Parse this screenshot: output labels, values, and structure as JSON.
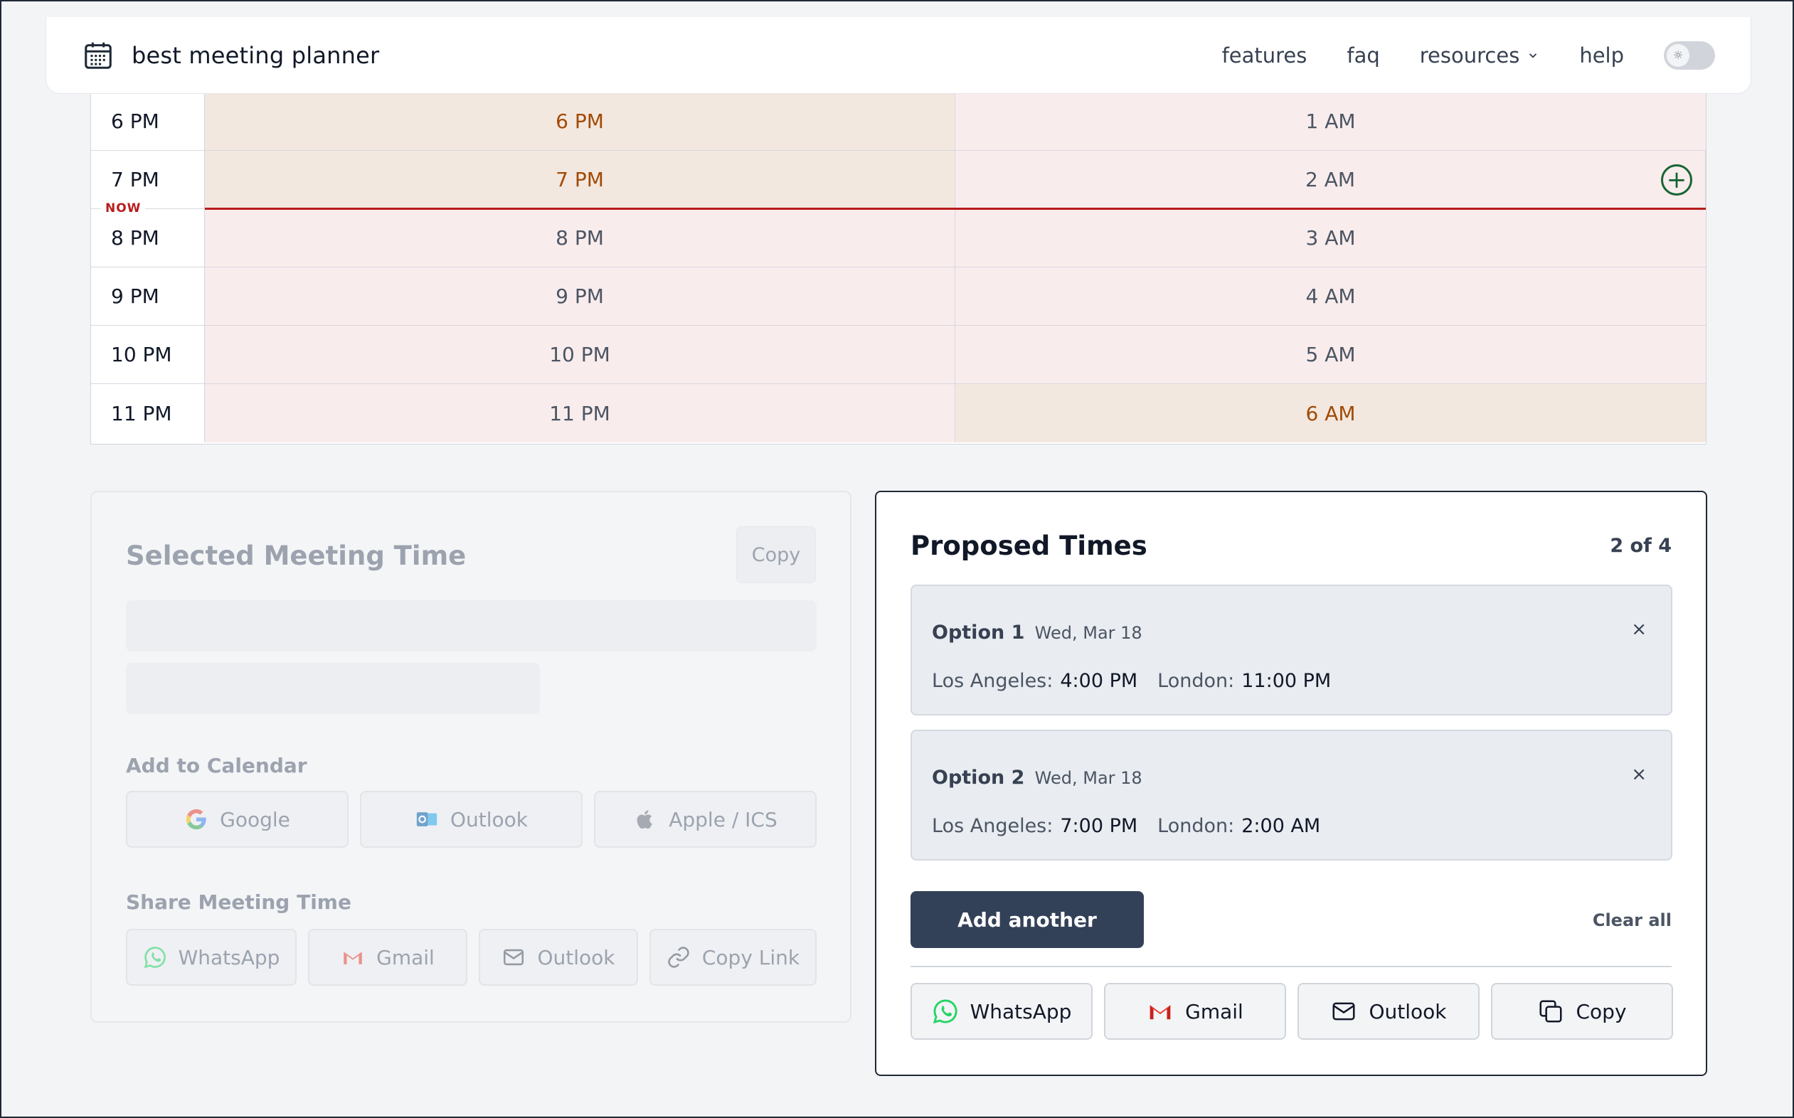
{
  "header": {
    "brand": "best meeting planner",
    "nav": {
      "features": "features",
      "faq": "faq",
      "resources": "resources",
      "help": "help"
    }
  },
  "schedule": {
    "now_label": "NOW",
    "rows": [
      {
        "label": "6 PM",
        "la": "6 PM",
        "london": "1 AM"
      },
      {
        "label": "7 PM",
        "la": "7 PM",
        "london": "2 AM"
      },
      {
        "label": "8 PM",
        "la": "8 PM",
        "london": "3 AM"
      },
      {
        "label": "9 PM",
        "la": "9 PM",
        "london": "4 AM"
      },
      {
        "label": "10 PM",
        "la": "10 PM",
        "london": "5 AM"
      },
      {
        "label": "11 PM",
        "la": "11 PM",
        "london": "6 AM"
      }
    ]
  },
  "selected": {
    "title": "Selected Meeting Time",
    "copy": "Copy",
    "add_to_calendar": "Add to Calendar",
    "calendar_buttons": [
      "Google",
      "Outlook",
      "Apple / ICS"
    ],
    "share_label": "Share Meeting Time",
    "share_buttons": [
      "WhatsApp",
      "Gmail",
      "Outlook",
      "Copy Link"
    ]
  },
  "proposed": {
    "title": "Proposed Times",
    "count": "2 of 4",
    "options": [
      {
        "name": "Option 1",
        "date": "Wed, Mar 18",
        "city1": "Los Angeles:",
        "time1": "4:00 PM",
        "city2": "London:",
        "time2": "11:00 PM"
      },
      {
        "name": "Option 2",
        "date": "Wed, Mar 18",
        "city1": "Los Angeles:",
        "time1": "7:00 PM",
        "city2": "London:",
        "time2": "2:00 AM"
      }
    ],
    "close": "×",
    "add_another": "Add another",
    "clear_all": "Clear all",
    "share_buttons": [
      "WhatsApp",
      "Gmail",
      "Outlook",
      "Copy"
    ]
  },
  "colors": {
    "now_line": "#b91c1c",
    "primary_button": "#334158",
    "highlight_text": "#a14a06",
    "whatsapp": "#25d366",
    "gmail": "#ea4335"
  }
}
